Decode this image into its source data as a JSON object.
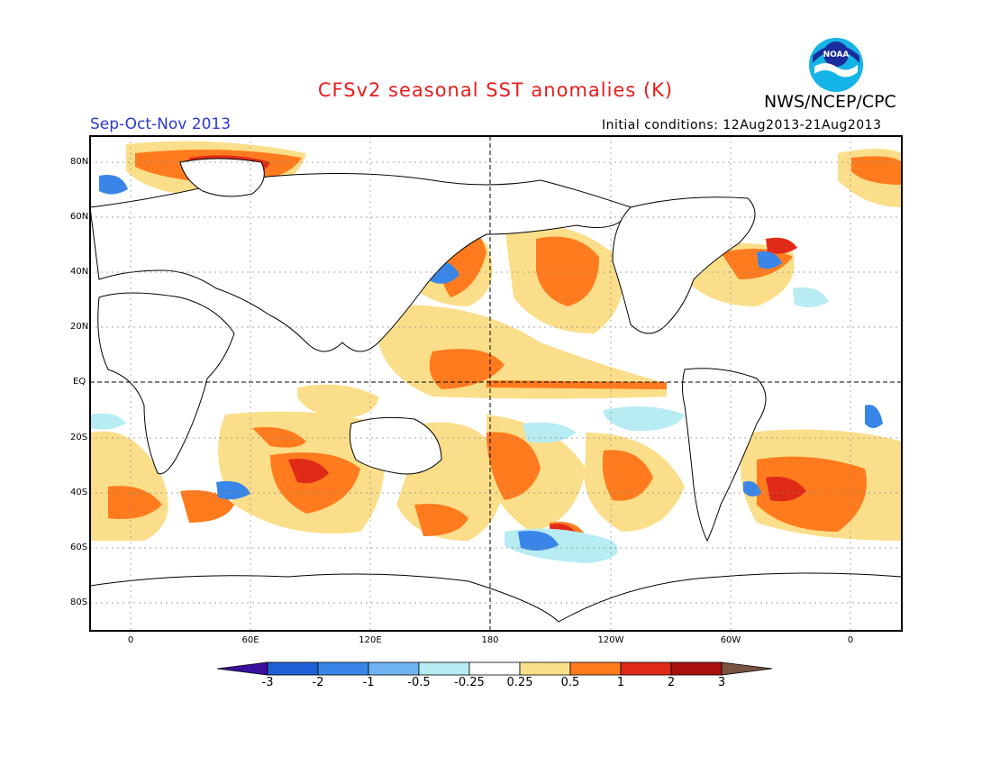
{
  "title": "CFSv2 seasonal SST anomalies (K)",
  "org": "NWS/NCEP/CPC",
  "logo_text": "NOAA",
  "season": "Sep-Oct-Nov 2013",
  "initial_conditions": "Initial conditions: 12Aug2013-21Aug2013",
  "lat_labels": [
    "80N",
    "60N",
    "40N",
    "20N",
    "EQ",
    "20S",
    "40S",
    "60S",
    "80S"
  ],
  "lon_labels": [
    "0",
    "60E",
    "120E",
    "180",
    "120W",
    "60W",
    "0"
  ],
  "colorbar": {
    "labels": [
      "-3",
      "-2",
      "-1",
      "-0.5",
      "-0.25",
      "0.25",
      "0.5",
      "1",
      "2",
      "3"
    ],
    "colors": [
      "#3a0f9e",
      "#1f5fd6",
      "#3a86e8",
      "#6fb2f0",
      "#b6ecf2",
      "#ffffff",
      "#fbde8a",
      "#ff7b1e",
      "#e02a18",
      "#a8100e",
      "#7a5243"
    ]
  },
  "colors": {
    "title": "#e81c1c",
    "season": "#2b38d6"
  }
}
